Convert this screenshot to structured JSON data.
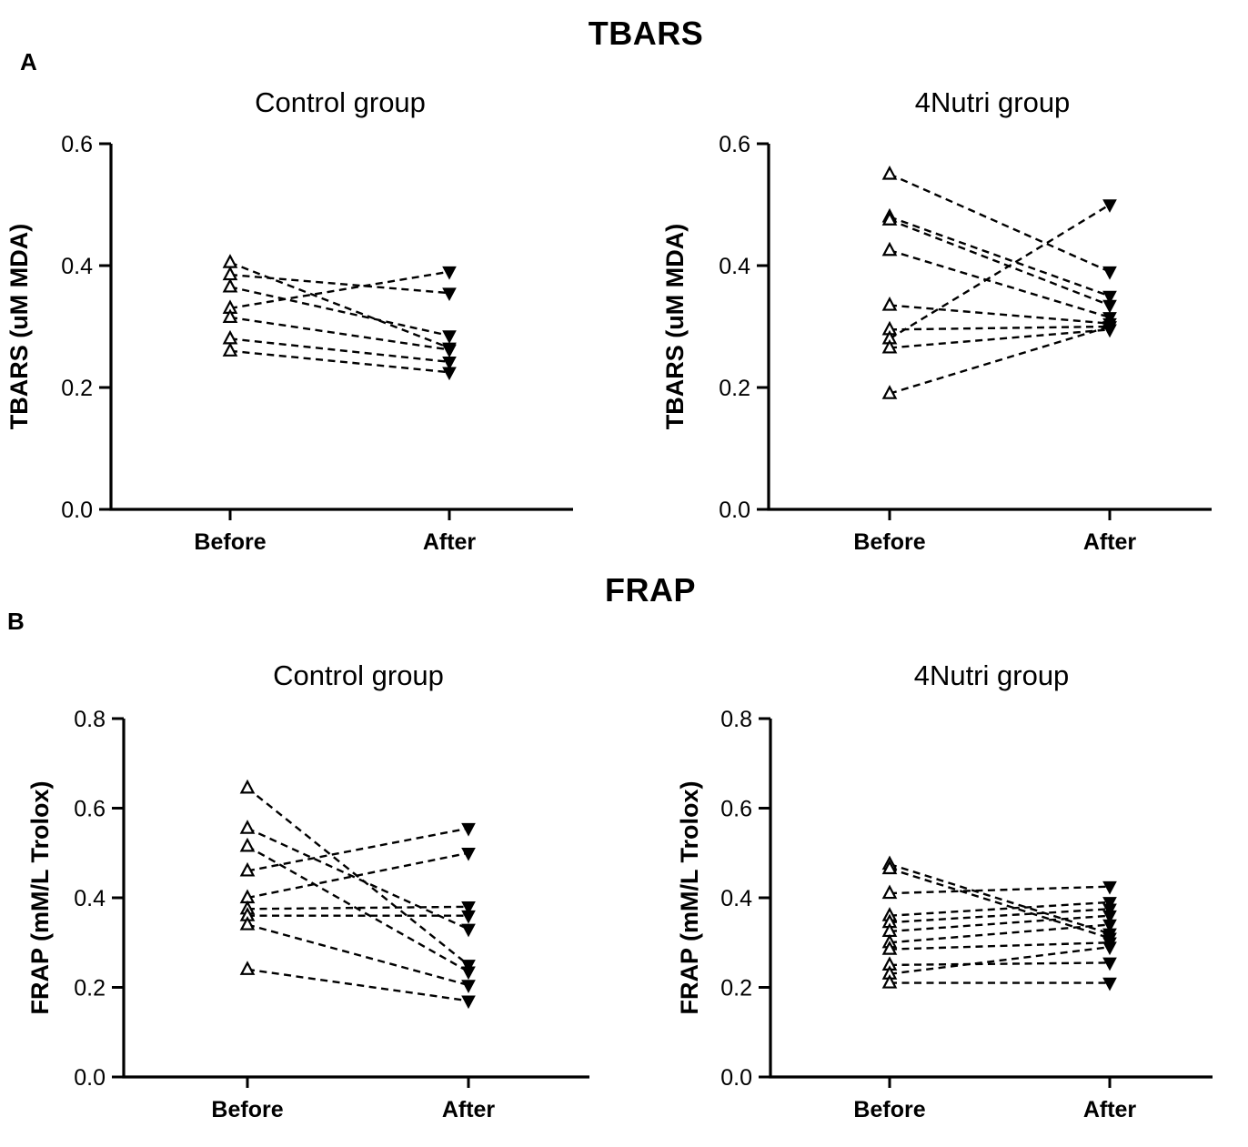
{
  "page": {
    "background": "#ffffff",
    "foreground": "#000000"
  },
  "sections": [
    {
      "panel_label": "A",
      "title": "TBARS"
    },
    {
      "panel_label": "B",
      "title": "FRAP"
    }
  ],
  "chart_data": [
    {
      "type": "scatter",
      "subtype": "paired-before-after",
      "panel": "A",
      "section_title": "TBARS",
      "title": "Control group",
      "ylabel": "TBARS (uM MDA)",
      "xlabel": "",
      "categories": [
        "Before",
        "After"
      ],
      "ylim": [
        0.0,
        0.6
      ],
      "yticks": [
        0.0,
        0.2,
        0.4,
        0.6
      ],
      "grid": false,
      "legend": false,
      "line_style": "dashed",
      "marker_before": "open-triangle-up",
      "marker_after": "filled-triangle-down",
      "pairs": [
        [
          0.405,
          0.265
        ],
        [
          0.385,
          0.355
        ],
        [
          0.365,
          0.285
        ],
        [
          0.33,
          0.39
        ],
        [
          0.315,
          0.262
        ],
        [
          0.28,
          0.242
        ],
        [
          0.26,
          0.225
        ]
      ]
    },
    {
      "type": "scatter",
      "subtype": "paired-before-after",
      "panel": "A",
      "section_title": "TBARS",
      "title": "4Nutri group",
      "ylabel": "TBARS (uM MDA)",
      "xlabel": "",
      "categories": [
        "Before",
        "After"
      ],
      "ylim": [
        0.0,
        0.6
      ],
      "yticks": [
        0.0,
        0.2,
        0.4,
        0.6
      ],
      "grid": false,
      "legend": false,
      "line_style": "dashed",
      "marker_before": "open-triangle-up",
      "marker_after": "filled-triangle-down",
      "pairs": [
        [
          0.55,
          0.39
        ],
        [
          0.48,
          0.35
        ],
        [
          0.475,
          0.335
        ],
        [
          0.425,
          0.315
        ],
        [
          0.335,
          0.305
        ],
        [
          0.295,
          0.3
        ],
        [
          0.28,
          0.5
        ],
        [
          0.265,
          0.295
        ],
        [
          0.19,
          0.3
        ]
      ]
    },
    {
      "type": "scatter",
      "subtype": "paired-before-after",
      "panel": "B",
      "section_title": "FRAP",
      "title": "Control group",
      "ylabel": "FRAP (mM/L Trolox)",
      "xlabel": "",
      "categories": [
        "Before",
        "After"
      ],
      "ylim": [
        0.0,
        0.8
      ],
      "yticks": [
        0.0,
        0.2,
        0.4,
        0.6,
        0.8
      ],
      "grid": false,
      "legend": false,
      "line_style": "dashed",
      "marker_before": "open-triangle-up",
      "marker_after": "filled-triangle-down",
      "pairs": [
        [
          0.645,
          0.25
        ],
        [
          0.555,
          0.33
        ],
        [
          0.515,
          0.235
        ],
        [
          0.46,
          0.555
        ],
        [
          0.4,
          0.5
        ],
        [
          0.375,
          0.38
        ],
        [
          0.36,
          0.36
        ],
        [
          0.34,
          0.205
        ],
        [
          0.24,
          0.17
        ]
      ]
    },
    {
      "type": "scatter",
      "subtype": "paired-before-after",
      "panel": "B",
      "section_title": "FRAP",
      "title": "4Nutri group",
      "ylabel": "FRAP (mM/L Trolox)",
      "xlabel": "",
      "categories": [
        "Before",
        "After"
      ],
      "ylim": [
        0.0,
        0.8
      ],
      "yticks": [
        0.0,
        0.2,
        0.4,
        0.6,
        0.8
      ],
      "grid": false,
      "legend": false,
      "line_style": "dashed",
      "marker_before": "open-triangle-up",
      "marker_after": "filled-triangle-down",
      "pairs": [
        [
          0.475,
          0.32
        ],
        [
          0.465,
          0.31
        ],
        [
          0.41,
          0.425
        ],
        [
          0.36,
          0.39
        ],
        [
          0.345,
          0.375
        ],
        [
          0.325,
          0.36
        ],
        [
          0.3,
          0.34
        ],
        [
          0.285,
          0.3
        ],
        [
          0.25,
          0.255
        ],
        [
          0.23,
          0.29
        ],
        [
          0.21,
          0.21
        ]
      ]
    }
  ]
}
